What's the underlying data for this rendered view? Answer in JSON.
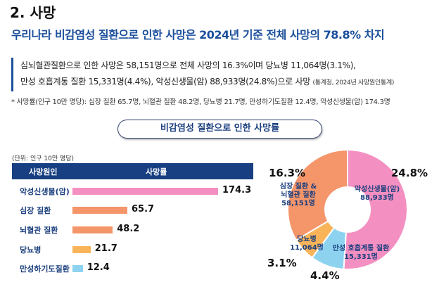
{
  "title": "2. 사망",
  "subtitle": "우리나라 비감염성 질환으로 인한 사망은 2024년 기준 전체 사망의 78.8% 차지",
  "paragraph": {
    "line1": "심뇌혈관질환으로 인한 사망은 58,151명으로 전체 사망의 16.3%이며 당뇨병 11,064명(3.1%),",
    "line2": "만성 호흡계통 질환 15,331명(4.4%), 악성신생물(암) 88,933명(24.8%)으로 사망",
    "source": "(통계청, 2024년 사망원인통계)"
  },
  "note": "* 사망률(인구 10만 명당): 심장 질환 65.7명, 뇌혈관 질환 48.2명, 당뇨병 21.7명, 만성하기도질환 12.4명, 악성신생물(암) 174.3명",
  "section_title": "비감염성 질환으로 인한 사망률",
  "chart_data": [
    {
      "type": "bar",
      "orientation": "horizontal",
      "unit": "(단위: 인구 10만 명당)",
      "headers": [
        "사망원인",
        "사망률"
      ],
      "categories": [
        "악성신생물(암)",
        "심장 질환",
        "뇌혈관 질환",
        "당뇨병",
        "만성하기도질환"
      ],
      "values": [
        174.3,
        65.7,
        48.2,
        21.7,
        12.4
      ],
      "value_labels": [
        "174.3",
        "65.7",
        "48.2",
        "21.7",
        "12.4"
      ],
      "colors": [
        "#f48fc1",
        "#f4956a",
        "#f4956a",
        "#f9b45a",
        "#8dd3f0"
      ]
    },
    {
      "type": "pie",
      "donut": true,
      "slices": [
        {
          "label": [
            "악성신생물(암)",
            "88,933명"
          ],
          "value": 24.8,
          "pct": "24.8%",
          "color": "#f48fc1"
        },
        {
          "label": [
            "만성 호흡계통 질환",
            "15,331명"
          ],
          "value": 4.4,
          "pct": "4.4%",
          "color": "#8dd3f0"
        },
        {
          "label": [
            "당뇨병",
            "11,064명"
          ],
          "value": 3.1,
          "pct": "3.1%",
          "color": "#f9b45a"
        },
        {
          "label": [
            "심장 질환 &",
            "뇌혈관 질환",
            "58,151명"
          ],
          "value": 16.3,
          "pct": "16.3%",
          "color": "#f4956a"
        }
      ]
    }
  ]
}
